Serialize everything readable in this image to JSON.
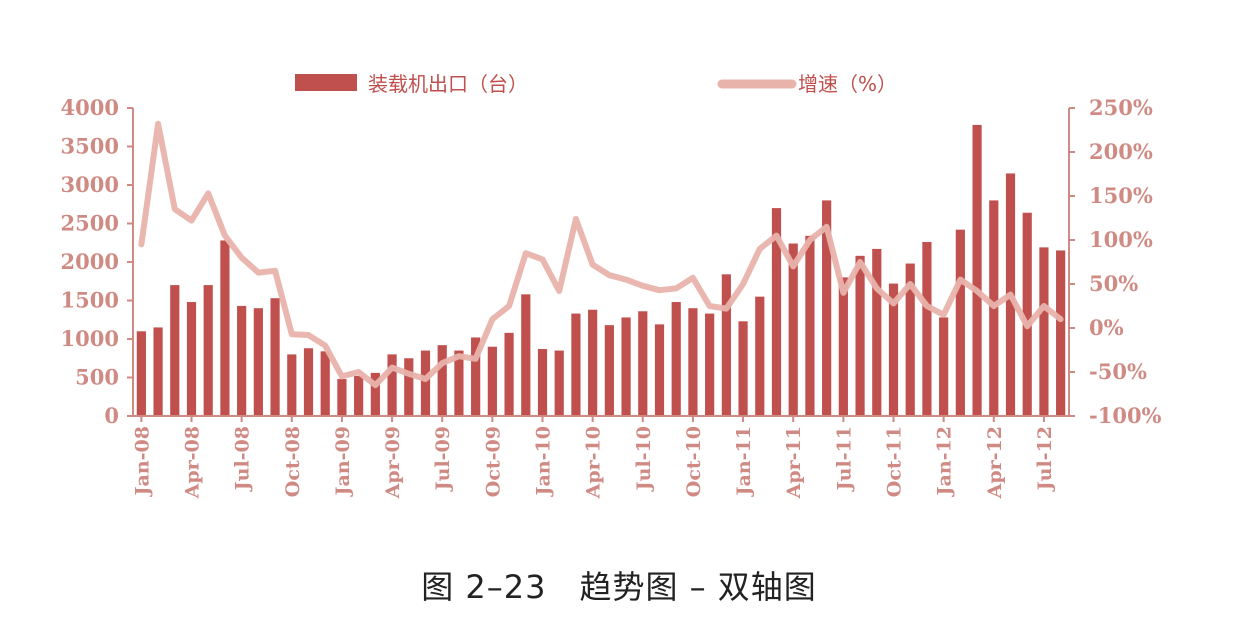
{
  "caption": "图 2–23　趋势图 – 双轴图",
  "colors": {
    "bar": "#c0504d",
    "line": "#e8b3ab",
    "axis": "#cf8a84"
  },
  "chart_data": {
    "type": "bar",
    "x": [
      "Jan-08",
      "Feb-08",
      "Mar-08",
      "Apr-08",
      "May-08",
      "Jun-08",
      "Jul-08",
      "Aug-08",
      "Sep-08",
      "Oct-08",
      "Nov-08",
      "Dec-08",
      "Jan-09",
      "Feb-09",
      "Mar-09",
      "Apr-09",
      "May-09",
      "Jun-09",
      "Jul-09",
      "Aug-09",
      "Sep-09",
      "Oct-09",
      "Nov-09",
      "Dec-09",
      "Jan-10",
      "Feb-10",
      "Mar-10",
      "Apr-10",
      "May-10",
      "Jun-10",
      "Jul-10",
      "Aug-10",
      "Sep-10",
      "Oct-10",
      "Nov-10",
      "Dec-10",
      "Jan-11",
      "Feb-11",
      "Mar-11",
      "Apr-11",
      "May-11",
      "Jun-11",
      "Jul-11",
      "Aug-11",
      "Sep-11",
      "Oct-11",
      "Nov-11",
      "Dec-11",
      "Jan-12",
      "Feb-12",
      "Mar-12",
      "Apr-12",
      "May-12",
      "Jun-12",
      "Jul-12",
      "Aug-12"
    ],
    "xticklabels": [
      "Jan-08",
      "Apr-08",
      "Jul-08",
      "Oct-08",
      "Jan-09",
      "Apr-09",
      "Jul-09",
      "Oct-09",
      "Jan-10",
      "Apr-10",
      "Jul-10",
      "Oct-10",
      "Jan-11",
      "Apr-11",
      "Jul-11",
      "Oct-11",
      "Jan-12",
      "Apr-12",
      "Jul-12"
    ],
    "xtick_index": [
      0,
      3,
      6,
      9,
      12,
      15,
      18,
      21,
      24,
      27,
      30,
      33,
      36,
      39,
      42,
      45,
      48,
      51,
      54
    ],
    "series": [
      {
        "name": "装载机出口（台）",
        "type": "bar",
        "axis": "left",
        "values": [
          1100,
          1150,
          1700,
          1480,
          1700,
          2280,
          1430,
          1400,
          1530,
          800,
          880,
          840,
          480,
          520,
          560,
          800,
          750,
          850,
          920,
          850,
          1020,
          900,
          1080,
          1580,
          870,
          850,
          1330,
          1380,
          1180,
          1280,
          1360,
          1190,
          1480,
          1400,
          1330,
          1840,
          1230,
          1550,
          2700,
          2240,
          2340,
          2800,
          1800,
          2080,
          2170,
          1720,
          1980,
          2260,
          1280,
          2420,
          3780,
          2800,
          3150,
          2640,
          2190,
          2150
        ]
      },
      {
        "name": "增速（%）",
        "type": "line",
        "axis": "right",
        "values": [
          95,
          232,
          135,
          122,
          153,
          105,
          80,
          63,
          65,
          -7,
          -8,
          -20,
          -55,
          -50,
          -65,
          -45,
          -52,
          -58,
          -40,
          -32,
          -35,
          10,
          25,
          85,
          78,
          42,
          124,
          72,
          60,
          55,
          48,
          43,
          45,
          57,
          25,
          22,
          50,
          90,
          105,
          70,
          100,
          115,
          40,
          75,
          45,
          28,
          50,
          25,
          15,
          55,
          42,
          25,
          38,
          2,
          25,
          10
        ]
      }
    ],
    "y_left": {
      "ylim": [
        0,
        4000
      ],
      "ticks": [
        0,
        500,
        1000,
        1500,
        2000,
        2500,
        3000,
        3500,
        4000
      ]
    },
    "y_right": {
      "ylim": [
        -100,
        250
      ],
      "ticks": [
        "-100%",
        "-50%",
        "0%",
        "50%",
        "100%",
        "150%",
        "200%",
        "250%"
      ]
    },
    "legend_placement": "top"
  }
}
